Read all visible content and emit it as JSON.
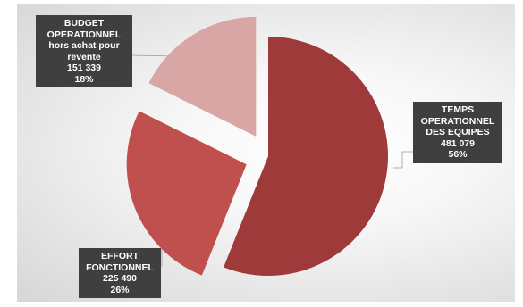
{
  "chart_data": {
    "type": "pie",
    "title": "",
    "slices": [
      {
        "key": "temps",
        "label_lines": [
          "TEMPS",
          "OPERATIONNEL",
          "DES EQUIPES"
        ],
        "value": 481079,
        "value_text": "481 079",
        "percent_text": "56%",
        "color": "#9e3b3a",
        "exploded": false
      },
      {
        "key": "effort",
        "label_lines": [
          "EFFORT",
          "FONCTIONNEL"
        ],
        "value": 225490,
        "value_text": "225 490",
        "percent_text": "26%",
        "color": "#c0504d",
        "exploded": true
      },
      {
        "key": "budget",
        "label_lines": [
          "BUDGET",
          "OPERATIONNEL",
          "hors achat pour",
          "revente"
        ],
        "value": 151339,
        "value_text": "151 339",
        "percent_text": "18%",
        "color": "#d9a6a6",
        "exploded": true
      }
    ],
    "legend": "none",
    "data_labels": "callouts"
  }
}
